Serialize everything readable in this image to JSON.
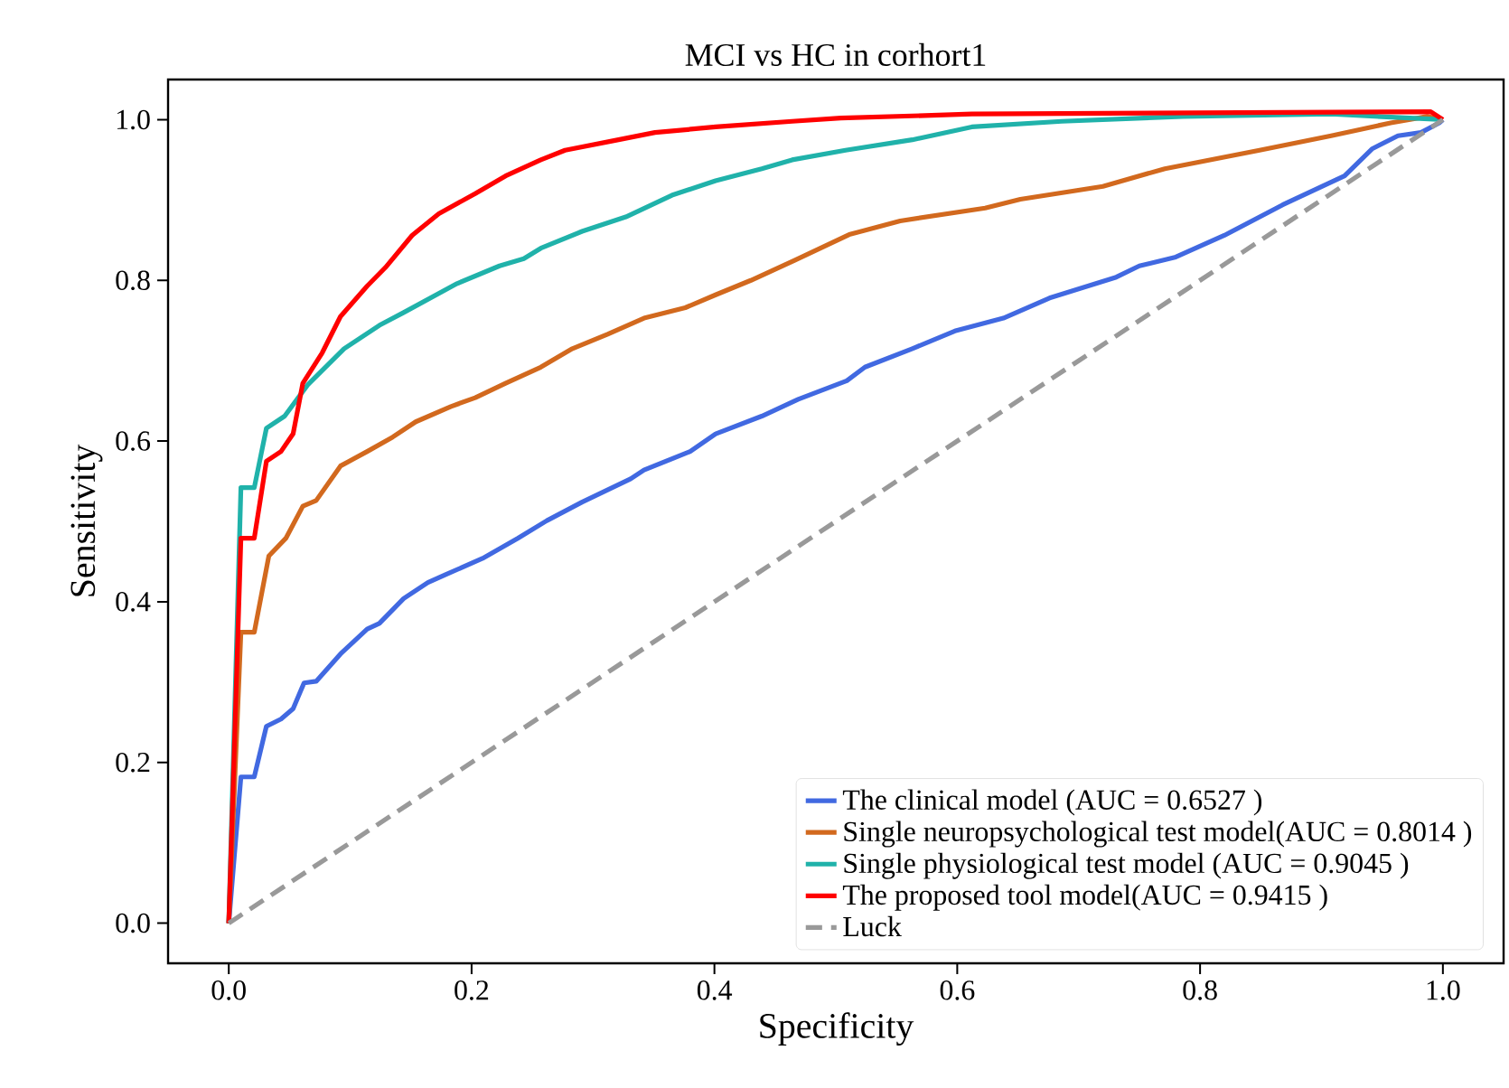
{
  "chart_data": {
    "type": "line",
    "title": "MCI vs HC in corhort1",
    "xlabel": "Specificity",
    "ylabel": "Sensitivity",
    "xlim": [
      -0.05,
      1.05
    ],
    "ylim": [
      -0.05,
      1.05
    ],
    "xticks": [
      {
        "value": 0,
        "label": "0.0"
      },
      {
        "value": 0.2,
        "label": "0.2"
      },
      {
        "value": 0.4,
        "label": "0.4"
      },
      {
        "value": 0.6,
        "label": "0.6"
      },
      {
        "value": 0.8,
        "label": "0.8"
      },
      {
        "value": 1,
        "label": "1.0"
      }
    ],
    "yticks": [
      {
        "value": 0,
        "label": "0.0"
      },
      {
        "value": 0.2,
        "label": "0.2"
      },
      {
        "value": 0.4,
        "label": "0.4"
      },
      {
        "value": 0.6,
        "label": "0.6"
      },
      {
        "value": 0.8,
        "label": "0.8"
      },
      {
        "value": 1,
        "label": "1.0"
      }
    ],
    "grid": false,
    "legend": "bottom right",
    "line_style": "solid",
    "series": [
      {
        "name": "The clinical model (AUC = 0.6527 )",
        "color": "#4169e1",
        "x": [
          0,
          0.01,
          0.021,
          0.031,
          0.043,
          0.053,
          0.062,
          0.072,
          0.092,
          0.114,
          0.124,
          0.144,
          0.164,
          0.179,
          0.209,
          0.238,
          0.262,
          0.291,
          0.331,
          0.342,
          0.38,
          0.401,
          0.439,
          0.469,
          0.509,
          0.524,
          0.563,
          0.598,
          0.638,
          0.676,
          0.731,
          0.75,
          0.78,
          0.82,
          0.868,
          0.919,
          0.942,
          0.963,
          0.982,
          0.997,
          1.0
        ],
        "values": [
          0,
          0.182,
          0.182,
          0.245,
          0.254,
          0.267,
          0.299,
          0.301,
          0.335,
          0.366,
          0.373,
          0.404,
          0.424,
          0.434,
          0.454,
          0.479,
          0.501,
          0.524,
          0.553,
          0.564,
          0.587,
          0.609,
          0.631,
          0.652,
          0.675,
          0.692,
          0.715,
          0.737,
          0.753,
          0.778,
          0.804,
          0.818,
          0.829,
          0.856,
          0.894,
          0.93,
          0.964,
          0.98,
          0.984,
          0.996,
          1.0
        ]
      },
      {
        "name": "Single neuropsychological test model(AUC = 0.8014 )",
        "color": "#d2691e",
        "x": [
          0,
          0.01,
          0.021,
          0.033,
          0.047,
          0.061,
          0.072,
          0.092,
          0.114,
          0.135,
          0.154,
          0.183,
          0.203,
          0.228,
          0.257,
          0.283,
          0.312,
          0.342,
          0.376,
          0.401,
          0.43,
          0.466,
          0.511,
          0.553,
          0.623,
          0.652,
          0.72,
          0.771,
          0.849,
          0.908,
          0.957,
          0.987,
          1.0
        ],
        "values": [
          0,
          0.362,
          0.362,
          0.457,
          0.479,
          0.519,
          0.526,
          0.569,
          0.587,
          0.605,
          0.624,
          0.643,
          0.654,
          0.672,
          0.692,
          0.715,
          0.733,
          0.753,
          0.766,
          0.782,
          0.8,
          0.825,
          0.857,
          0.874,
          0.89,
          0.901,
          0.917,
          0.939,
          0.962,
          0.98,
          0.996,
          1.004,
          1.0
        ]
      },
      {
        "name": "Single physiological test model (AUC = 0.9045 )",
        "color": "#20b2aa",
        "x": [
          0,
          0.01,
          0.021,
          0.031,
          0.046,
          0.065,
          0.095,
          0.124,
          0.144,
          0.188,
          0.223,
          0.243,
          0.257,
          0.291,
          0.327,
          0.365,
          0.401,
          0.439,
          0.464,
          0.508,
          0.563,
          0.612,
          0.686,
          0.786,
          0.908,
          0.99,
          1.0
        ],
        "values": [
          0,
          0.542,
          0.542,
          0.616,
          0.631,
          0.67,
          0.715,
          0.744,
          0.76,
          0.796,
          0.818,
          0.827,
          0.84,
          0.861,
          0.879,
          0.906,
          0.924,
          0.939,
          0.95,
          0.962,
          0.975,
          0.991,
          0.998,
          1.004,
          1.007,
          null,
          1.0
        ]
      },
      {
        "name": "The proposed tool model(AUC = 0.9415 )",
        "color": "#ff0000",
        "x": [
          0,
          0.01,
          0.021,
          0.031,
          0.043,
          0.053,
          0.061,
          0.077,
          0.092,
          0.114,
          0.129,
          0.151,
          0.173,
          0.203,
          0.228,
          0.257,
          0.277,
          0.321,
          0.351,
          0.401,
          0.464,
          0.504,
          0.612,
          0.99,
          1.0
        ],
        "values": [
          0,
          0.479,
          0.479,
          0.575,
          0.587,
          0.609,
          0.672,
          0.71,
          0.755,
          0.793,
          0.816,
          0.856,
          0.883,
          0.908,
          0.93,
          0.95,
          0.962,
          0.975,
          0.984,
          0.991,
          0.998,
          1.002,
          1.007,
          1.01,
          1.0
        ]
      },
      {
        "name": "Luck",
        "color": "#999999",
        "line_style": "dashed",
        "x": [
          0,
          1
        ],
        "values": [
          0,
          1
        ]
      }
    ]
  }
}
